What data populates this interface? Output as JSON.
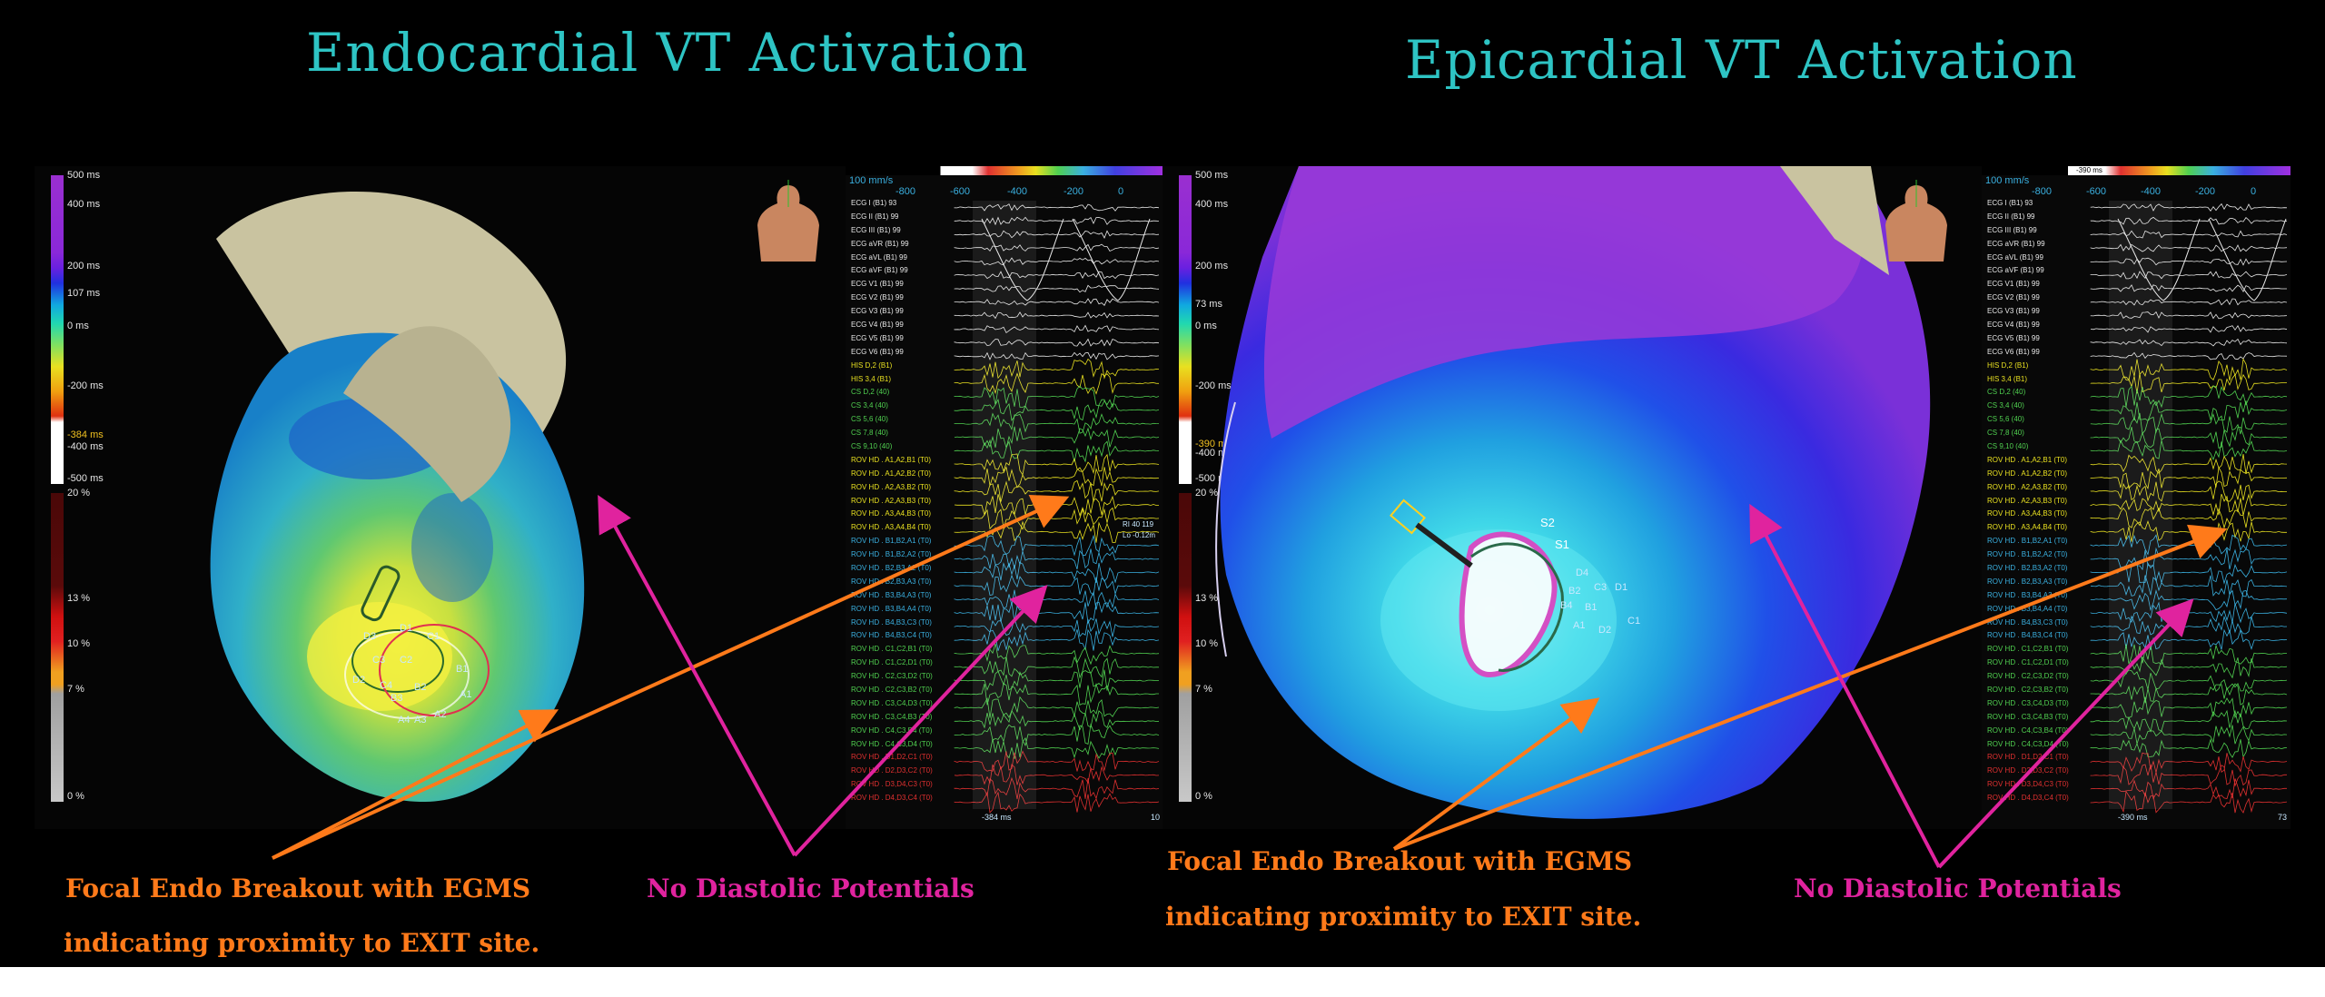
{
  "titles": {
    "left": "Endocardial VT Activation",
    "right": "Epicardial VT Activation"
  },
  "left_panel": {
    "time_scale": [
      "500 ms",
      "400 ms",
      "200 ms",
      "107 ms",
      "0 ms",
      "-200 ms",
      "-384 ms",
      "-400 ms",
      "-500 ms"
    ],
    "pct_scale": [
      "20 %",
      "13 %",
      "10 %",
      "7 %",
      "0 %"
    ],
    "egm_top": {
      "speed": "100 mm/s",
      "ticks": [
        "-800",
        "-600",
        "-400",
        "-200",
        "0"
      ]
    },
    "egm_bottom": "-384 ms",
    "egm_bottom_right": "10",
    "egm_side": [
      "RI 40 119",
      "Lo -0.12m"
    ],
    "electrodes": [
      "D1",
      "C1",
      "C3",
      "C2",
      "D2",
      "C4",
      "B1",
      "B2",
      "A1",
      "A4",
      "A3",
      "A2",
      "B3",
      "D3"
    ]
  },
  "right_panel": {
    "time_scale": [
      "500 ms",
      "400 ms",
      "200 ms",
      "73 ms",
      "0 ms",
      "-200 ms",
      "-390 ms",
      "-400 ms",
      "-500 ms"
    ],
    "pct_scale": [
      "20 %",
      "13 %",
      "10 %",
      "7 %",
      "0 %"
    ],
    "egm_top": {
      "speed": "100 mm/s",
      "ticks": [
        "-800",
        "-600",
        "-400",
        "-200",
        "0"
      ],
      "marker": "-390 ms"
    },
    "egm_bottom": "-390 ms",
    "egm_bottom_right": "73",
    "electrodes": [
      "S2",
      "S1",
      "D4",
      "B2",
      "C3",
      "D1",
      "B4",
      "B1",
      "C1",
      "A1",
      "D2"
    ]
  },
  "channels": [
    {
      "label": "ECG I (B1) 93",
      "color": "#e8e8e8"
    },
    {
      "label": "ECG II (B1) 99",
      "color": "#e8e8e8"
    },
    {
      "label": "ECG III (B1) 99",
      "color": "#e8e8e8"
    },
    {
      "label": "ECG aVR (B1) 99",
      "color": "#e8e8e8"
    },
    {
      "label": "ECG aVL (B1) 99",
      "color": "#e8e8e8"
    },
    {
      "label": "ECG aVF (B1) 99",
      "color": "#e8e8e8"
    },
    {
      "label": "ECG V1 (B1) 99",
      "color": "#e8e8e8"
    },
    {
      "label": "ECG V2 (B1) 99",
      "color": "#e8e8e8"
    },
    {
      "label": "ECG V3 (B1) 99",
      "color": "#e8e8e8"
    },
    {
      "label": "ECG V4 (B1) 99",
      "color": "#e8e8e8"
    },
    {
      "label": "ECG V5 (B1) 99",
      "color": "#e8e8e8"
    },
    {
      "label": "ECG V6 (B1) 99",
      "color": "#e8e8e8"
    },
    {
      "label": "HIS D,2 (B1)",
      "color": "#e8e020"
    },
    {
      "label": "HIS 3,4 (B1)",
      "color": "#e8e020"
    },
    {
      "label": "CS D,2 (40)",
      "color": "#50d050"
    },
    {
      "label": "CS 3,4 (40)",
      "color": "#50d050"
    },
    {
      "label": "CS 5,6 (40)",
      "color": "#50d050"
    },
    {
      "label": "CS 7,8 (40)",
      "color": "#50d050"
    },
    {
      "label": "CS 9,10 (40)",
      "color": "#50d050"
    },
    {
      "label": "ROV HD . A1,A2,B1 (T0)",
      "color": "#e8e020"
    },
    {
      "label": "ROV HD . A1,A2,B2 (T0)",
      "color": "#e8e020"
    },
    {
      "label": "ROV HD . A2,A3,B2 (T0)",
      "color": "#e8e020"
    },
    {
      "label": "ROV HD . A2,A3,B3 (T0)",
      "color": "#e8e020"
    },
    {
      "label": "ROV HD . A3,A4,B3 (T0)",
      "color": "#e8e020"
    },
    {
      "label": "ROV HD . A3,A4,B4 (T0)",
      "color": "#e8e020"
    },
    {
      "label": "ROV HD . B1,B2,A1 (T0)",
      "color": "#3ab0e0"
    },
    {
      "label": "ROV HD . B1,B2,A2 (T0)",
      "color": "#3ab0e0"
    },
    {
      "label": "ROV HD . B2,B3,A2 (T0)",
      "color": "#3ab0e0"
    },
    {
      "label": "ROV HD . B2,B3,A3 (T0)",
      "color": "#3ab0e0"
    },
    {
      "label": "ROV HD . B3,B4,A3 (T0)",
      "color": "#3ab0e0"
    },
    {
      "label": "ROV HD . B3,B4,A4 (T0)",
      "color": "#3ab0e0"
    },
    {
      "label": "ROV HD . B4,B3,C3 (T0)",
      "color": "#3ab0e0"
    },
    {
      "label": "ROV HD . B4,B3,C4 (T0)",
      "color": "#3ab0e0"
    },
    {
      "label": "ROV HD . C1,C2,B1 (T0)",
      "color": "#50d050"
    },
    {
      "label": "ROV HD . C1,C2,D1 (T0)",
      "color": "#50d050"
    },
    {
      "label": "ROV HD . C2,C3,D2 (T0)",
      "color": "#50d050"
    },
    {
      "label": "ROV HD . C2,C3,B2 (T0)",
      "color": "#50d050"
    },
    {
      "label": "ROV HD . C3,C4,D3 (T0)",
      "color": "#50d050"
    },
    {
      "label": "ROV HD . C3,C4,B3 (T0)",
      "color": "#50d050"
    },
    {
      "label": "ROV HD . C4,C3,B4 (T0)",
      "color": "#50d050"
    },
    {
      "label": "ROV HD . C4,C3,D4 (T0)",
      "color": "#50d050"
    },
    {
      "label": "ROV HD . D1,D2,C1 (T0)",
      "color": "#e03030"
    },
    {
      "label": "ROV HD . D2,D3,C2 (T0)",
      "color": "#e03030"
    },
    {
      "label": "ROV HD . D3,D4,C3 (T0)",
      "color": "#e03030"
    },
    {
      "label": "ROV HD . D4,D3,C4 (T0)",
      "color": "#e03030"
    }
  ],
  "captions": {
    "left_focal_line1": "Focal Endo Breakout with EGMS",
    "left_focal_line2": "indicating proximity to EXIT site.",
    "left_no_diastolic": "No Diastolic Potentials",
    "right_focal_line1": "Focal Endo Breakout with EGMS",
    "right_focal_line2": "indicating proximity to EXIT site.",
    "right_no_diastolic": "No Diastolic Potentials"
  },
  "colors": {
    "title": "#2ec4c4",
    "arrow_orange": "#ff7a1a",
    "arrow_magenta": "#e0239e"
  }
}
